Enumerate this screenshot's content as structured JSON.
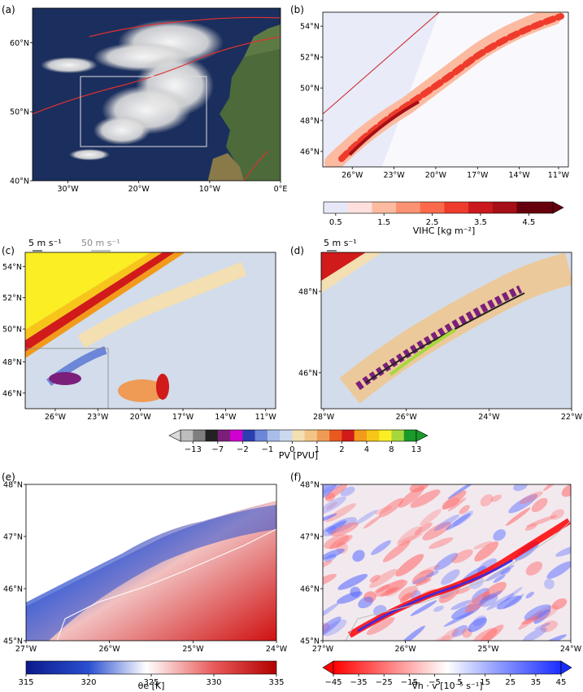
{
  "chart_data": [
    {
      "panel": "(a)",
      "type": "map",
      "x_ticks": [
        "30°W",
        "20°W",
        "10°W",
        "0°E"
      ],
      "y_ticks": [
        "40°N",
        "50°N",
        "60°N"
      ],
      "x_values": [
        -30,
        -20,
        -10,
        0
      ],
      "y_values": [
        40,
        50,
        60
      ],
      "xlim": [
        -35,
        0
      ],
      "ylim": [
        40,
        65
      ]
    },
    {
      "panel": "(b)",
      "type": "heatmap",
      "x_ticks": [
        "26°W",
        "23°W",
        "20°W",
        "17°W",
        "14°W",
        "11°W"
      ],
      "y_ticks": [
        "46°N",
        "48°N",
        "50°N",
        "52°N",
        "54°N"
      ],
      "colorbar": {
        "label": "VIHC [kg m⁻²]",
        "tick_labels": [
          "0.5",
          "1.5",
          "2.5",
          "3.5",
          "4.5"
        ],
        "ticks": [
          0.5,
          1.5,
          2.5,
          3.5,
          4.5
        ],
        "range": [
          0.25,
          5.0
        ],
        "extend": "max"
      }
    },
    {
      "panel": "(c)",
      "type": "heatmap",
      "x_ticks": [
        "26°W",
        "23°W",
        "20°W",
        "17°W",
        "14°W",
        "11°W"
      ],
      "y_ticks": [
        "46°N",
        "48°N",
        "50°N",
        "52°N",
        "54°N"
      ],
      "vector_keys": [
        "5 m s⁻¹",
        "50 m s⁻¹"
      ]
    },
    {
      "panel": "(d)",
      "type": "heatmap",
      "x_ticks": [
        "28°W",
        "26°W",
        "24°W",
        "22°W"
      ],
      "y_ticks": [
        "46°N",
        "48°N"
      ],
      "vector_keys": [
        "5 m s⁻¹"
      ]
    },
    {
      "panel": "(c)-(d)",
      "type": "colorbar",
      "label": "PV [PVU]",
      "tick_labels": [
        "−13",
        "−7",
        "−2",
        "−1",
        "0",
        "1",
        "2",
        "4",
        "8",
        "13"
      ],
      "extend": "both"
    },
    {
      "panel": "(e)",
      "type": "heatmap",
      "x_ticks": [
        "27°W",
        "26°W",
        "25°W",
        "24°W"
      ],
      "y_ticks": [
        "45°N",
        "46°N",
        "47°N",
        "48°N"
      ],
      "colorbar": {
        "label": "θe [K]",
        "tick_labels": [
          "315",
          "320",
          "325",
          "330",
          "335"
        ],
        "range": [
          315,
          335
        ]
      }
    },
    {
      "panel": "(f)",
      "type": "heatmap",
      "x_ticks": [
        "27°W",
        "26°W",
        "25°W",
        "24°W"
      ],
      "y_ticks": [
        "45°N",
        "46°N",
        "47°N",
        "48°N"
      ],
      "colorbar": {
        "label": "∇h · v [10⁻⁵ s⁻¹]",
        "tick_labels": [
          "−45",
          "−35",
          "−25",
          "−15",
          "−5",
          "5",
          "15",
          "25",
          "35",
          "45"
        ],
        "range": [
          -45,
          45
        ],
        "extend": "both"
      }
    }
  ],
  "colors": {
    "vihc": [
      "#e6e8f7",
      "#fde0dd",
      "#fcbba1",
      "#fc9272",
      "#fb6a4a",
      "#ef3b2c",
      "#cb181d",
      "#a50f15",
      "#67000d"
    ],
    "pv": [
      "#bdbdbd",
      "#7f7f7f",
      "#222222",
      "#7b1f7b",
      "#d000d0",
      "#2c3fb0",
      "#6c86d8",
      "#a9bde9",
      "#ccd8ee",
      "#f3dfb1",
      "#f2c486",
      "#ef9a55",
      "#e9581f",
      "#d11a1a",
      "#f29a1a",
      "#f7c51a",
      "#fbee23",
      "#a6d83c",
      "#1a9a2a"
    ],
    "theta": [
      "#0b1a8c",
      "#1f3ec9",
      "#7f97e3",
      "#ffffff",
      "#f19c9c",
      "#e23a3a",
      "#b30000"
    ],
    "div": [
      "#ff0000",
      "#ff9a9a",
      "#ffffff",
      "#9aa6ff",
      "#1a2dff"
    ]
  }
}
